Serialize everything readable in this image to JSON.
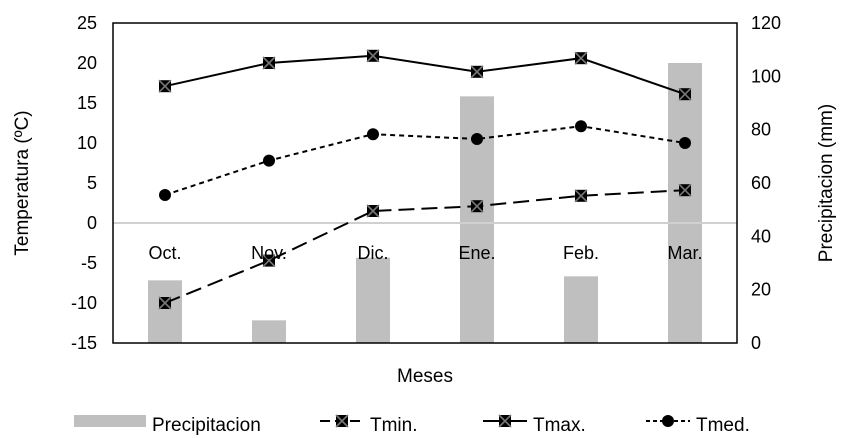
{
  "chart_data": {
    "type": "bar+line",
    "categories": [
      "Oct.",
      "Nov.",
      "Dic.",
      "Ene.",
      "Feb.",
      "Mar."
    ],
    "xlabel": "Meses",
    "ylabel_left": "Temperatura (ºC)",
    "ylabel_right": "Precipitacion (mm)",
    "ylim_left": [
      -15,
      25
    ],
    "ylim_right": [
      0,
      120
    ],
    "yticks_left": [
      -15,
      -10,
      -5,
      0,
      5,
      10,
      15,
      20,
      25
    ],
    "yticks_right": [
      0,
      20,
      40,
      60,
      80,
      100,
      120
    ],
    "grid": false,
    "legend_position": "bottom",
    "bars": {
      "name": "Precipitacion",
      "axis": "right",
      "color": "#bfbfbf",
      "values": [
        23.5,
        8.5,
        32,
        92.5,
        25,
        105
      ]
    },
    "series": [
      {
        "name": "Tmin.",
        "axis": "left",
        "style": "dashed",
        "marker": "square-x",
        "values": [
          -10,
          -4.7,
          1.5,
          2.1,
          3.4,
          4.1
        ]
      },
      {
        "name": "Tmax.",
        "axis": "left",
        "style": "solid",
        "marker": "square-x",
        "values": [
          17.1,
          20,
          20.9,
          18.9,
          20.6,
          16.1
        ]
      },
      {
        "name": "Tmed.",
        "axis": "left",
        "style": "dotted",
        "marker": "circle",
        "values": [
          3.5,
          7.8,
          11.1,
          10.5,
          12.1,
          10
        ]
      }
    ]
  }
}
